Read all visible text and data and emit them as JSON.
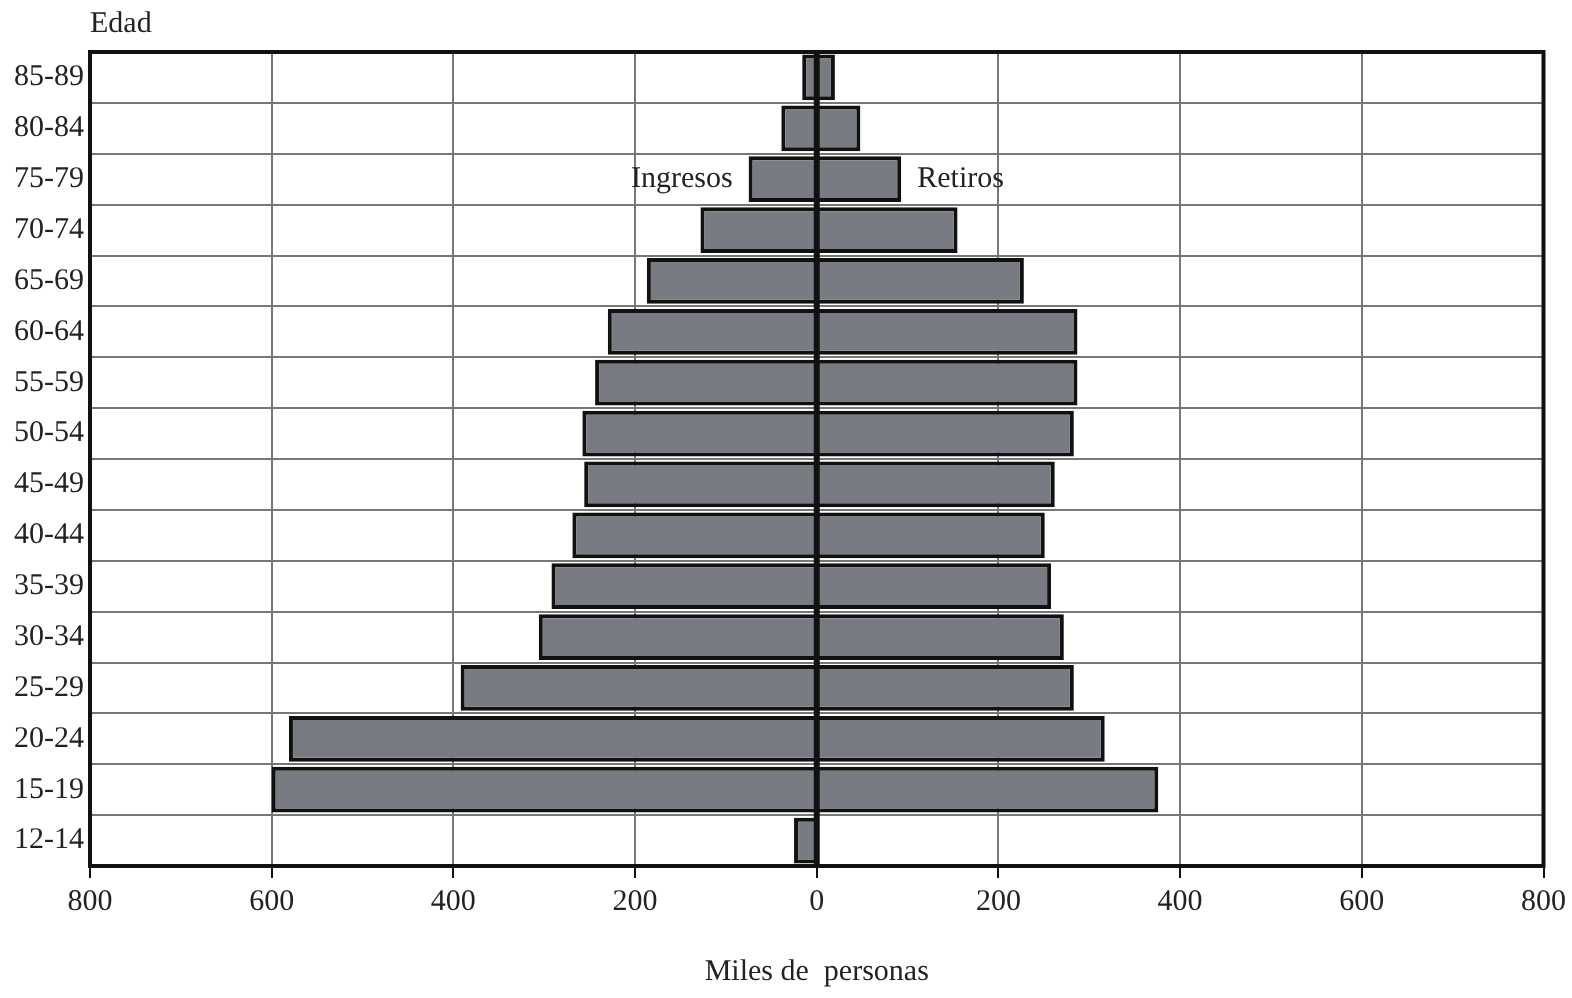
{
  "chart_data": {
    "type": "bar",
    "orientation": "horizontal",
    "stacked": true,
    "xlabel": "Miles de  personas",
    "ylabel": "Edad",
    "categories": [
      "85-89",
      "80-84",
      "75-79",
      "70-74",
      "65-69",
      "60-64",
      "55-59",
      "50-54",
      "45-49",
      "40-44",
      "35-39",
      "30-34",
      "25-29",
      "20-24",
      "15-19",
      "12-14"
    ],
    "series": [
      {
        "name": "Ingresos",
        "color": "#787c82",
        "values": [
          -16,
          -39,
          -75,
          -128,
          -187,
          -230,
          -244,
          -258,
          -256,
          -269,
          -292,
          -306,
          -392,
          -581,
          -600,
          -25
        ]
      },
      {
        "name": "Retiros",
        "color": "#787c82",
        "values": [
          20,
          48,
          93,
          155,
          228,
          287,
          287,
          283,
          262,
          251,
          258,
          272,
          283,
          317,
          376,
          0
        ]
      }
    ],
    "xlim": [
      -800,
      800
    ],
    "xticks": [
      {
        "value": -800,
        "label": "800"
      },
      {
        "value": -600,
        "label": "600"
      },
      {
        "value": -400,
        "label": "400"
      },
      {
        "value": -200,
        "label": "200"
      },
      0,
      200,
      400,
      600,
      800
    ],
    "grid": true,
    "legend": false
  }
}
